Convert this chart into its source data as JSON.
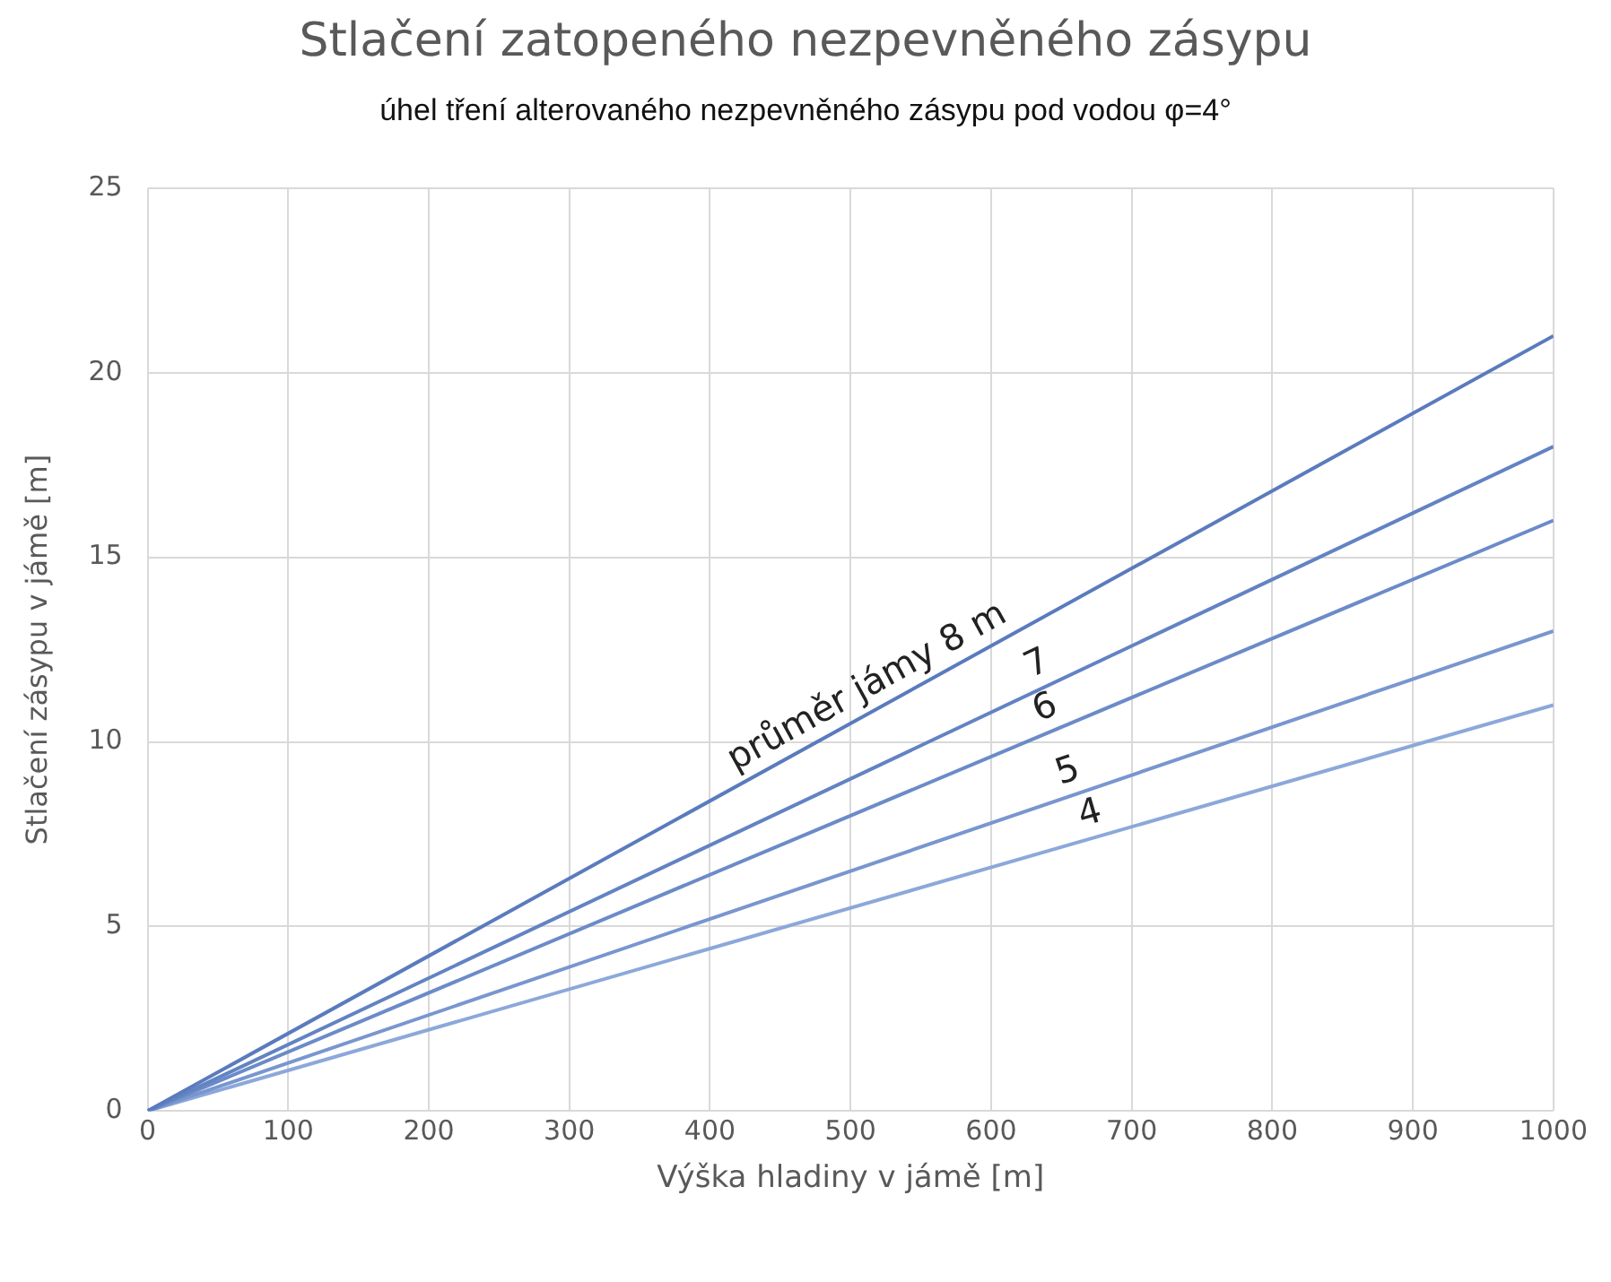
{
  "chart_data": {
    "type": "line",
    "title": "Stlačení zatopeného nezpevněného zásypu",
    "subtitle": "úhel tření alterovaného nezpevněného zásypu pod vodou φ=4°",
    "xlabel": "Výška hladiny v jámě [m]",
    "ylabel": "Stlačení zásypu v jámě [m]",
    "x": [
      0,
      1000
    ],
    "series": [
      {
        "name": "průměr jámy 8 m",
        "color": "#5a7bbd",
        "values": [
          0,
          21
        ]
      },
      {
        "name": "7",
        "color": "#6283c3",
        "values": [
          0,
          18
        ]
      },
      {
        "name": "6",
        "color": "#6b8bc8",
        "values": [
          0,
          16
        ]
      },
      {
        "name": "5",
        "color": "#7896cf",
        "values": [
          0,
          13
        ]
      },
      {
        "name": "4",
        "color": "#8ca8da",
        "values": [
          0,
          11
        ]
      }
    ],
    "xlim": [
      0,
      1000
    ],
    "xticks": [
      0,
      100,
      200,
      300,
      400,
      500,
      600,
      700,
      800,
      900,
      1000
    ],
    "ylim": [
      0,
      25
    ],
    "yticks": [
      0,
      5,
      10,
      15,
      20,
      25
    ],
    "grid": true,
    "legend": false,
    "marker": "none",
    "line_style": "solid"
  }
}
